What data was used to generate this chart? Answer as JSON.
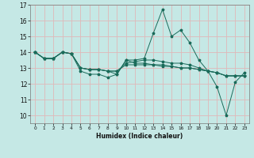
{
  "title": "",
  "xlabel": "Humidex (Indice chaleur)",
  "background_color": "#c5e8e5",
  "grid_color": "#e0b8b8",
  "line_color": "#1a6b5a",
  "xlim": [
    -0.5,
    23.5
  ],
  "ylim": [
    9.5,
    17.0
  ],
  "yticks": [
    10,
    11,
    12,
    13,
    14,
    15,
    16,
    17
  ],
  "xticks": [
    0,
    1,
    2,
    3,
    4,
    5,
    6,
    7,
    8,
    9,
    10,
    11,
    12,
    13,
    14,
    15,
    16,
    17,
    18,
    19,
    20,
    21,
    22,
    23
  ],
  "lines": [
    [
      14.0,
      13.6,
      13.6,
      14.0,
      13.9,
      12.8,
      12.6,
      12.6,
      12.4,
      12.6,
      13.5,
      13.5,
      13.6,
      15.2,
      16.7,
      15.0,
      15.4,
      14.6,
      13.5,
      12.8,
      11.8,
      10.0,
      12.1,
      12.7
    ],
    [
      14.0,
      13.6,
      13.6,
      14.0,
      13.9,
      13.0,
      12.9,
      12.9,
      12.8,
      12.8,
      13.3,
      13.4,
      13.5,
      13.5,
      13.4,
      13.3,
      13.3,
      13.2,
      13.0,
      12.8,
      12.7,
      12.5,
      12.5,
      12.5
    ],
    [
      14.0,
      13.6,
      13.6,
      14.0,
      13.9,
      13.0,
      12.9,
      12.9,
      12.8,
      12.6,
      13.5,
      13.3,
      13.3,
      13.2,
      13.2,
      13.1,
      13.0,
      13.0,
      12.9,
      12.8,
      12.7,
      12.5,
      12.5,
      12.5
    ],
    [
      14.0,
      13.6,
      13.6,
      14.0,
      13.9,
      13.0,
      12.9,
      12.9,
      12.8,
      12.8,
      13.2,
      13.2,
      13.2,
      13.2,
      13.1,
      13.1,
      13.0,
      13.0,
      12.9,
      12.8,
      12.7,
      12.5,
      12.5,
      12.5
    ]
  ]
}
